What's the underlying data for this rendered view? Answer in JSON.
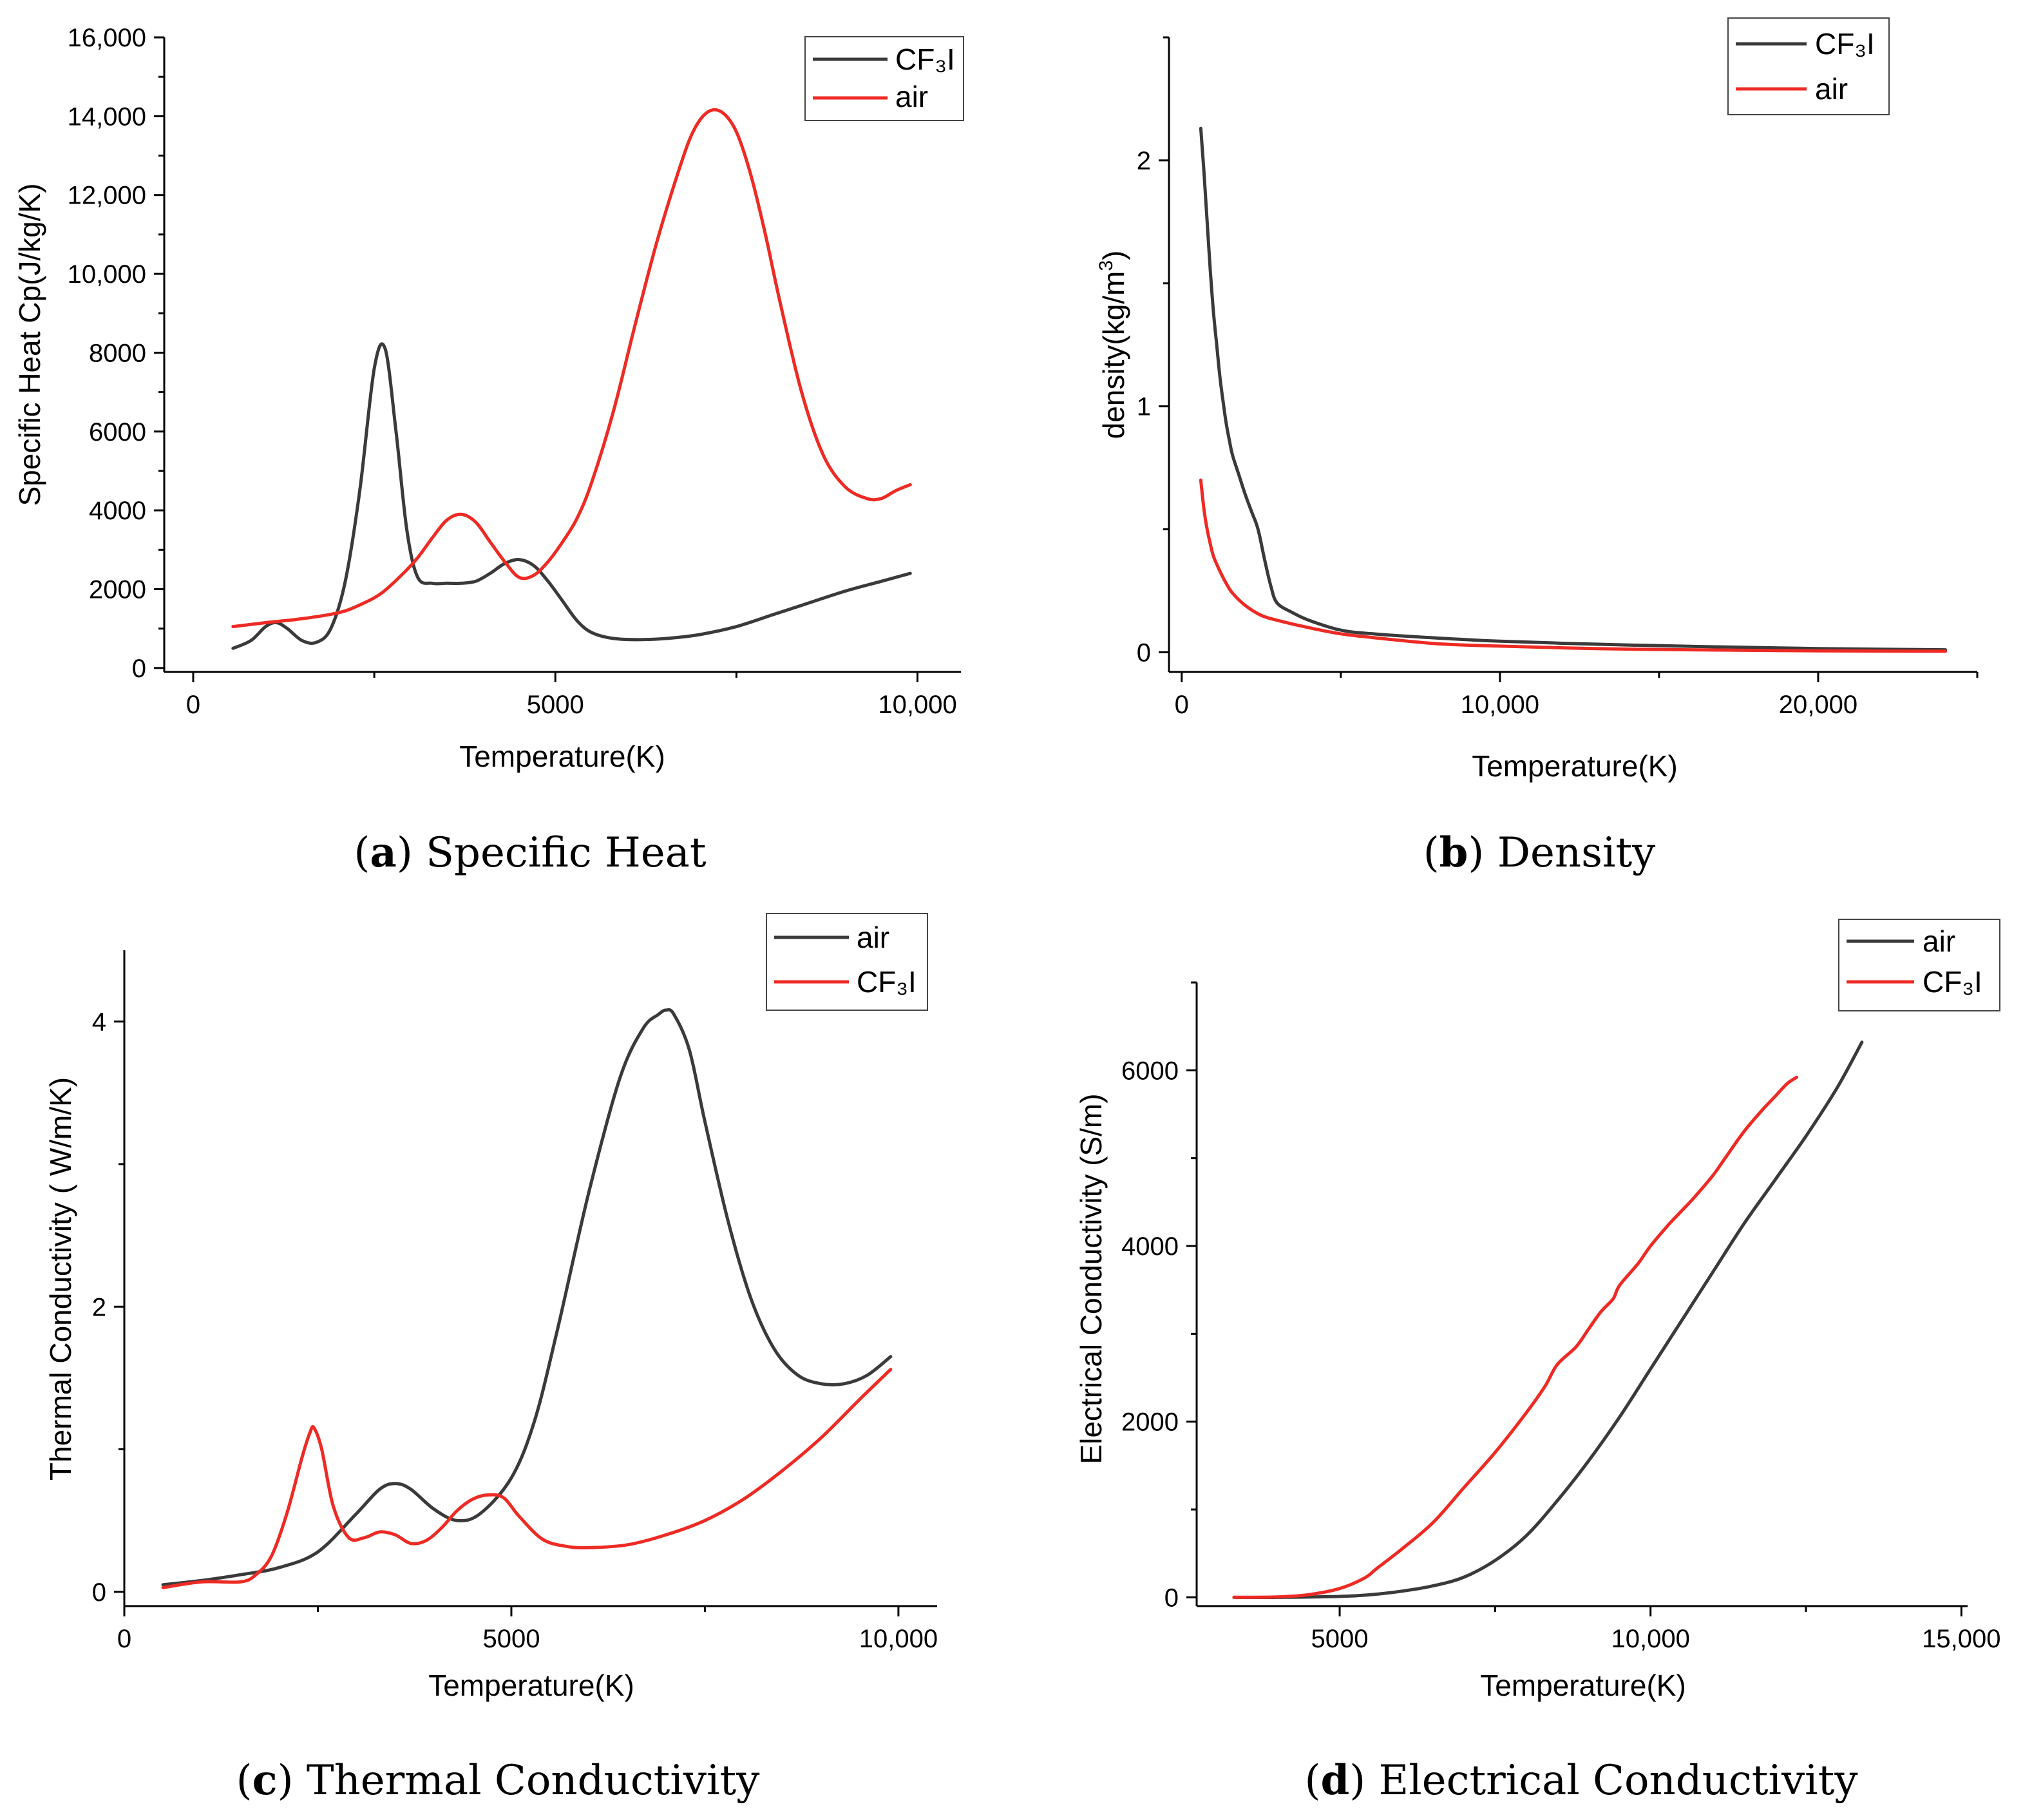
{
  "colors": {
    "dark": "#3a3a3a",
    "red": "#ee2a24"
  },
  "chart_data": [
    {
      "id": "a",
      "type": "line",
      "caption_letter": "a",
      "caption_text": " Specific Heat",
      "xlabel": "Temperature(K)",
      "ylabel": "Specific Heat Cp(J/kg/K)",
      "xlim": [
        -400,
        10600
      ],
      "ylim": [
        -100,
        16000
      ],
      "xticks": [
        0,
        5000,
        10000
      ],
      "xtick_labels": [
        "0",
        "5000",
        "10,000"
      ],
      "yticks": [
        0,
        2000,
        4000,
        6000,
        8000,
        10000,
        12000,
        14000,
        16000
      ],
      "ytick_labels": [
        "0",
        "2000",
        "4000",
        "6000",
        "8000",
        "10,000",
        "12,000",
        "14,000",
        "16,000"
      ],
      "legend": [
        "CF₃I",
        "air"
      ],
      "series": [
        {
          "name": "CF₃I",
          "color": "dark",
          "x": [
            550,
            800,
            1000,
            1150,
            1300,
            1500,
            1700,
            1900,
            2100,
            2300,
            2500,
            2650,
            2800,
            2950,
            3100,
            3300,
            3500,
            3700,
            3900,
            4100,
            4300,
            4500,
            4700,
            4900,
            5100,
            5300,
            5500,
            5800,
            6200,
            6600,
            7000,
            7500,
            8000,
            8500,
            9000,
            9500,
            9900
          ],
          "y": [
            500,
            700,
            1050,
            1150,
            1000,
            700,
            650,
            1000,
            2200,
            4500,
            7600,
            8100,
            6000,
            3500,
            2300,
            2150,
            2150,
            2150,
            2200,
            2400,
            2650,
            2750,
            2600,
            2200,
            1700,
            1200,
            900,
            750,
            720,
            760,
            850,
            1050,
            1350,
            1650,
            1950,
            2200,
            2400
          ]
        },
        {
          "name": "air",
          "color": "red",
          "x": [
            550,
            1000,
            1500,
            2000,
            2300,
            2600,
            2900,
            3100,
            3300,
            3500,
            3700,
            3900,
            4100,
            4300,
            4500,
            4700,
            4900,
            5100,
            5300,
            5500,
            5800,
            6100,
            6400,
            6700,
            6900,
            7100,
            7300,
            7500,
            7700,
            7900,
            8100,
            8400,
            8700,
            9000,
            9300,
            9500,
            9700,
            9900
          ],
          "y": [
            1050,
            1150,
            1250,
            1400,
            1600,
            1900,
            2400,
            2800,
            3300,
            3750,
            3900,
            3700,
            3200,
            2700,
            2300,
            2350,
            2700,
            3200,
            3800,
            4700,
            6500,
            8700,
            10800,
            12600,
            13600,
            14100,
            14100,
            13600,
            12500,
            11000,
            9300,
            7000,
            5400,
            4600,
            4300,
            4300,
            4500,
            4650
          ]
        }
      ]
    },
    {
      "id": "b",
      "type": "line",
      "caption_letter": "b",
      "caption_text": " Density",
      "xlabel": "Temperature(K)",
      "ylabel": "density(kg/m³)",
      "xlim": [
        -400,
        25000
      ],
      "ylim": [
        -0.08,
        2.5
      ],
      "xticks": [
        0,
        10000,
        20000
      ],
      "xtick_labels": [
        "0",
        "10,000",
        "20,000"
      ],
      "yticks": [
        0,
        1,
        2
      ],
      "ytick_labels": [
        "0",
        "1",
        "2"
      ],
      "legend": [
        "CF₃I",
        "air"
      ],
      "series": [
        {
          "name": "CF₃I",
          "color": "dark",
          "x": [
            600,
            700,
            800,
            900,
            1000,
            1100,
            1200,
            1300,
            1400,
            1500,
            1600,
            1800,
            2000,
            2200,
            2400,
            2600,
            2800,
            3000,
            3500,
            4000,
            5000,
            6000,
            8000,
            10000,
            13000,
            16000,
            20000,
            24000
          ],
          "y": [
            2.13,
            1.95,
            1.75,
            1.55,
            1.38,
            1.25,
            1.12,
            1.02,
            0.93,
            0.86,
            0.8,
            0.72,
            0.64,
            0.57,
            0.5,
            0.38,
            0.27,
            0.2,
            0.16,
            0.13,
            0.09,
            0.075,
            0.058,
            0.045,
            0.033,
            0.024,
            0.015,
            0.01
          ]
        },
        {
          "name": "air",
          "color": "red",
          "x": [
            600,
            700,
            800,
            900,
            1000,
            1200,
            1400,
            1600,
            2000,
            2500,
            3000,
            4000,
            5000,
            6000,
            8000,
            10000,
            13000,
            16000,
            20000,
            24000
          ],
          "y": [
            0.7,
            0.58,
            0.5,
            0.44,
            0.39,
            0.33,
            0.28,
            0.24,
            0.19,
            0.15,
            0.13,
            0.1,
            0.075,
            0.06,
            0.035,
            0.025,
            0.015,
            0.01,
            0.006,
            0.004
          ]
        }
      ]
    },
    {
      "id": "c",
      "type": "line",
      "caption_letter": "c",
      "caption_text": " Thermal Conductivity",
      "xlabel": "Temperature(K)",
      "ylabel": "Thermal Conductivity ( W/m/K)",
      "xlim": [
        0,
        10500
      ],
      "ylim": [
        -0.1,
        4.5
      ],
      "xticks": [
        0,
        5000,
        10000
      ],
      "xtick_labels": [
        "0",
        "5000",
        "10,000"
      ],
      "yticks": [
        0,
        2,
        4
      ],
      "ytick_labels": [
        "0",
        "2",
        "4"
      ],
      "legend": [
        "air",
        "CF₃I"
      ],
      "series": [
        {
          "name": "air",
          "color": "dark",
          "x": [
            500,
            1000,
            1500,
            2000,
            2500,
            3000,
            3300,
            3500,
            3700,
            4000,
            4300,
            4600,
            5000,
            5300,
            5600,
            6000,
            6400,
            6700,
            6900,
            7000,
            7100,
            7300,
            7500,
            7800,
            8100,
            8400,
            8700,
            9000,
            9300,
            9600,
            9900
          ],
          "y": [
            0.05,
            0.08,
            0.12,
            0.17,
            0.28,
            0.55,
            0.72,
            0.76,
            0.72,
            0.58,
            0.5,
            0.55,
            0.8,
            1.2,
            1.85,
            2.8,
            3.6,
            3.95,
            4.05,
            4.08,
            4.05,
            3.8,
            3.3,
            2.6,
            2.05,
            1.7,
            1.52,
            1.46,
            1.46,
            1.52,
            1.65
          ]
        },
        {
          "name": "CF₃I",
          "color": "red",
          "x": [
            500,
            1000,
            1500,
            1700,
            1900,
            2100,
            2300,
            2400,
            2450,
            2550,
            2700,
            2900,
            3100,
            3300,
            3500,
            3700,
            3900,
            4100,
            4300,
            4500,
            4700,
            4900,
            5100,
            5400,
            5700,
            6000,
            6500,
            7000,
            7500,
            8000,
            8500,
            9000,
            9500,
            9900
          ],
          "y": [
            0.03,
            0.07,
            0.07,
            0.12,
            0.25,
            0.55,
            0.95,
            1.12,
            1.15,
            1.0,
            0.6,
            0.38,
            0.38,
            0.42,
            0.4,
            0.34,
            0.36,
            0.45,
            0.57,
            0.65,
            0.68,
            0.66,
            0.53,
            0.37,
            0.32,
            0.31,
            0.33,
            0.4,
            0.5,
            0.65,
            0.85,
            1.08,
            1.35,
            1.56
          ]
        }
      ]
    },
    {
      "id": "d",
      "type": "line",
      "caption_letter": "d",
      "caption_text": " Electrical Conductivity",
      "xlabel": "Temperature(K)",
      "ylabel": "Electrical Conductivity (S/m)",
      "xlim": [
        2700,
        15100
      ],
      "ylim": [
        -100,
        7000
      ],
      "xticks": [
        5000,
        10000,
        15000
      ],
      "xtick_labels": [
        "5000",
        "10,000",
        "15,000"
      ],
      "yticks": [
        0,
        2000,
        4000,
        6000
      ],
      "ytick_labels": [
        "0",
        "2000",
        "4000",
        "6000"
      ],
      "legend": [
        "air",
        "CF₃I"
      ],
      "series": [
        {
          "name": "air",
          "color": "dark",
          "x": [
            3300,
            4000,
            5000,
            5500,
            6000,
            6500,
            7000,
            7500,
            8000,
            8500,
            9000,
            9500,
            10000,
            10500,
            11000,
            11500,
            12000,
            12500,
            13000,
            13400
          ],
          "y": [
            0,
            0,
            10,
            30,
            70,
            130,
            230,
            420,
            700,
            1100,
            1550,
            2050,
            2600,
            3150,
            3700,
            4250,
            4750,
            5250,
            5800,
            6320
          ]
        },
        {
          "name": "CF₃I",
          "color": "red",
          "x": [
            3300,
            4000,
            4500,
            5000,
            5400,
            5600,
            6000,
            6500,
            7000,
            7500,
            8000,
            8300,
            8500,
            8800,
            9000,
            9200,
            9400,
            9500,
            9800,
            10000,
            10300,
            10500,
            10700,
            11000,
            11200,
            11500,
            11800,
            12000,
            12200,
            12350
          ],
          "y": [
            0,
            5,
            30,
            100,
            220,
            330,
            550,
            850,
            1250,
            1650,
            2100,
            2400,
            2650,
            2850,
            3050,
            3250,
            3400,
            3550,
            3800,
            4000,
            4250,
            4400,
            4550,
            4800,
            5000,
            5300,
            5550,
            5700,
            5850,
            5920
          ]
        }
      ]
    }
  ]
}
